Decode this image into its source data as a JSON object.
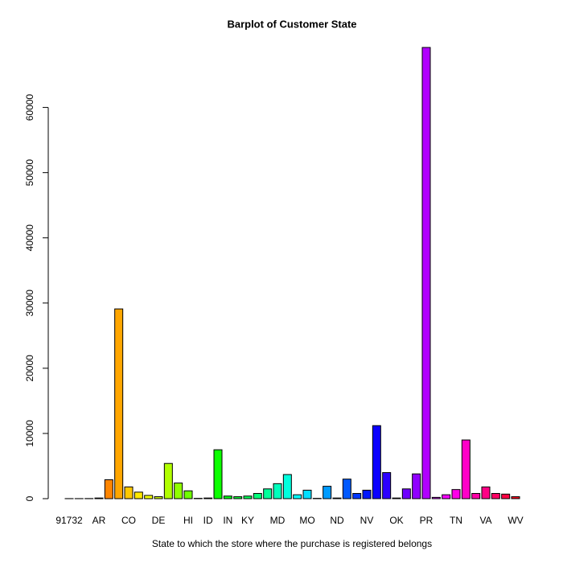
{
  "chart_data": {
    "type": "bar",
    "title": "Barplot of Customer State",
    "x_label": "State to which the store where the purchase is registered belongs",
    "categories": [
      "91732",
      null,
      null,
      "AR",
      null,
      null,
      "CO",
      null,
      null,
      "DE",
      null,
      null,
      "HI",
      null,
      "ID",
      null,
      "IN",
      null,
      "KY",
      null,
      null,
      "MD",
      null,
      null,
      "MO",
      null,
      null,
      "ND",
      null,
      null,
      "NV",
      null,
      null,
      "OK",
      null,
      null,
      "PR",
      null,
      null,
      "TN",
      null,
      null,
      "VA",
      null,
      null,
      "WV"
    ],
    "values": [
      10,
      10,
      20,
      100,
      2900,
      29100,
      1800,
      1000,
      500,
      300,
      5400,
      2400,
      1200,
      50,
      100,
      7500,
      400,
      300,
      400,
      800,
      1500,
      2300,
      3700,
      600,
      1300,
      50,
      1900,
      100,
      3000,
      800,
      1300,
      11200,
      4000,
      100,
      1500,
      3800,
      69200,
      200,
      600,
      1400,
      9000,
      800,
      1800,
      800,
      700,
      300
    ],
    "color_scheme": "rainbow",
    "ylim": [
      0,
      69200
    ],
    "yticks": [
      0,
      10000,
      20000,
      30000,
      40000,
      50000,
      60000
    ]
  }
}
